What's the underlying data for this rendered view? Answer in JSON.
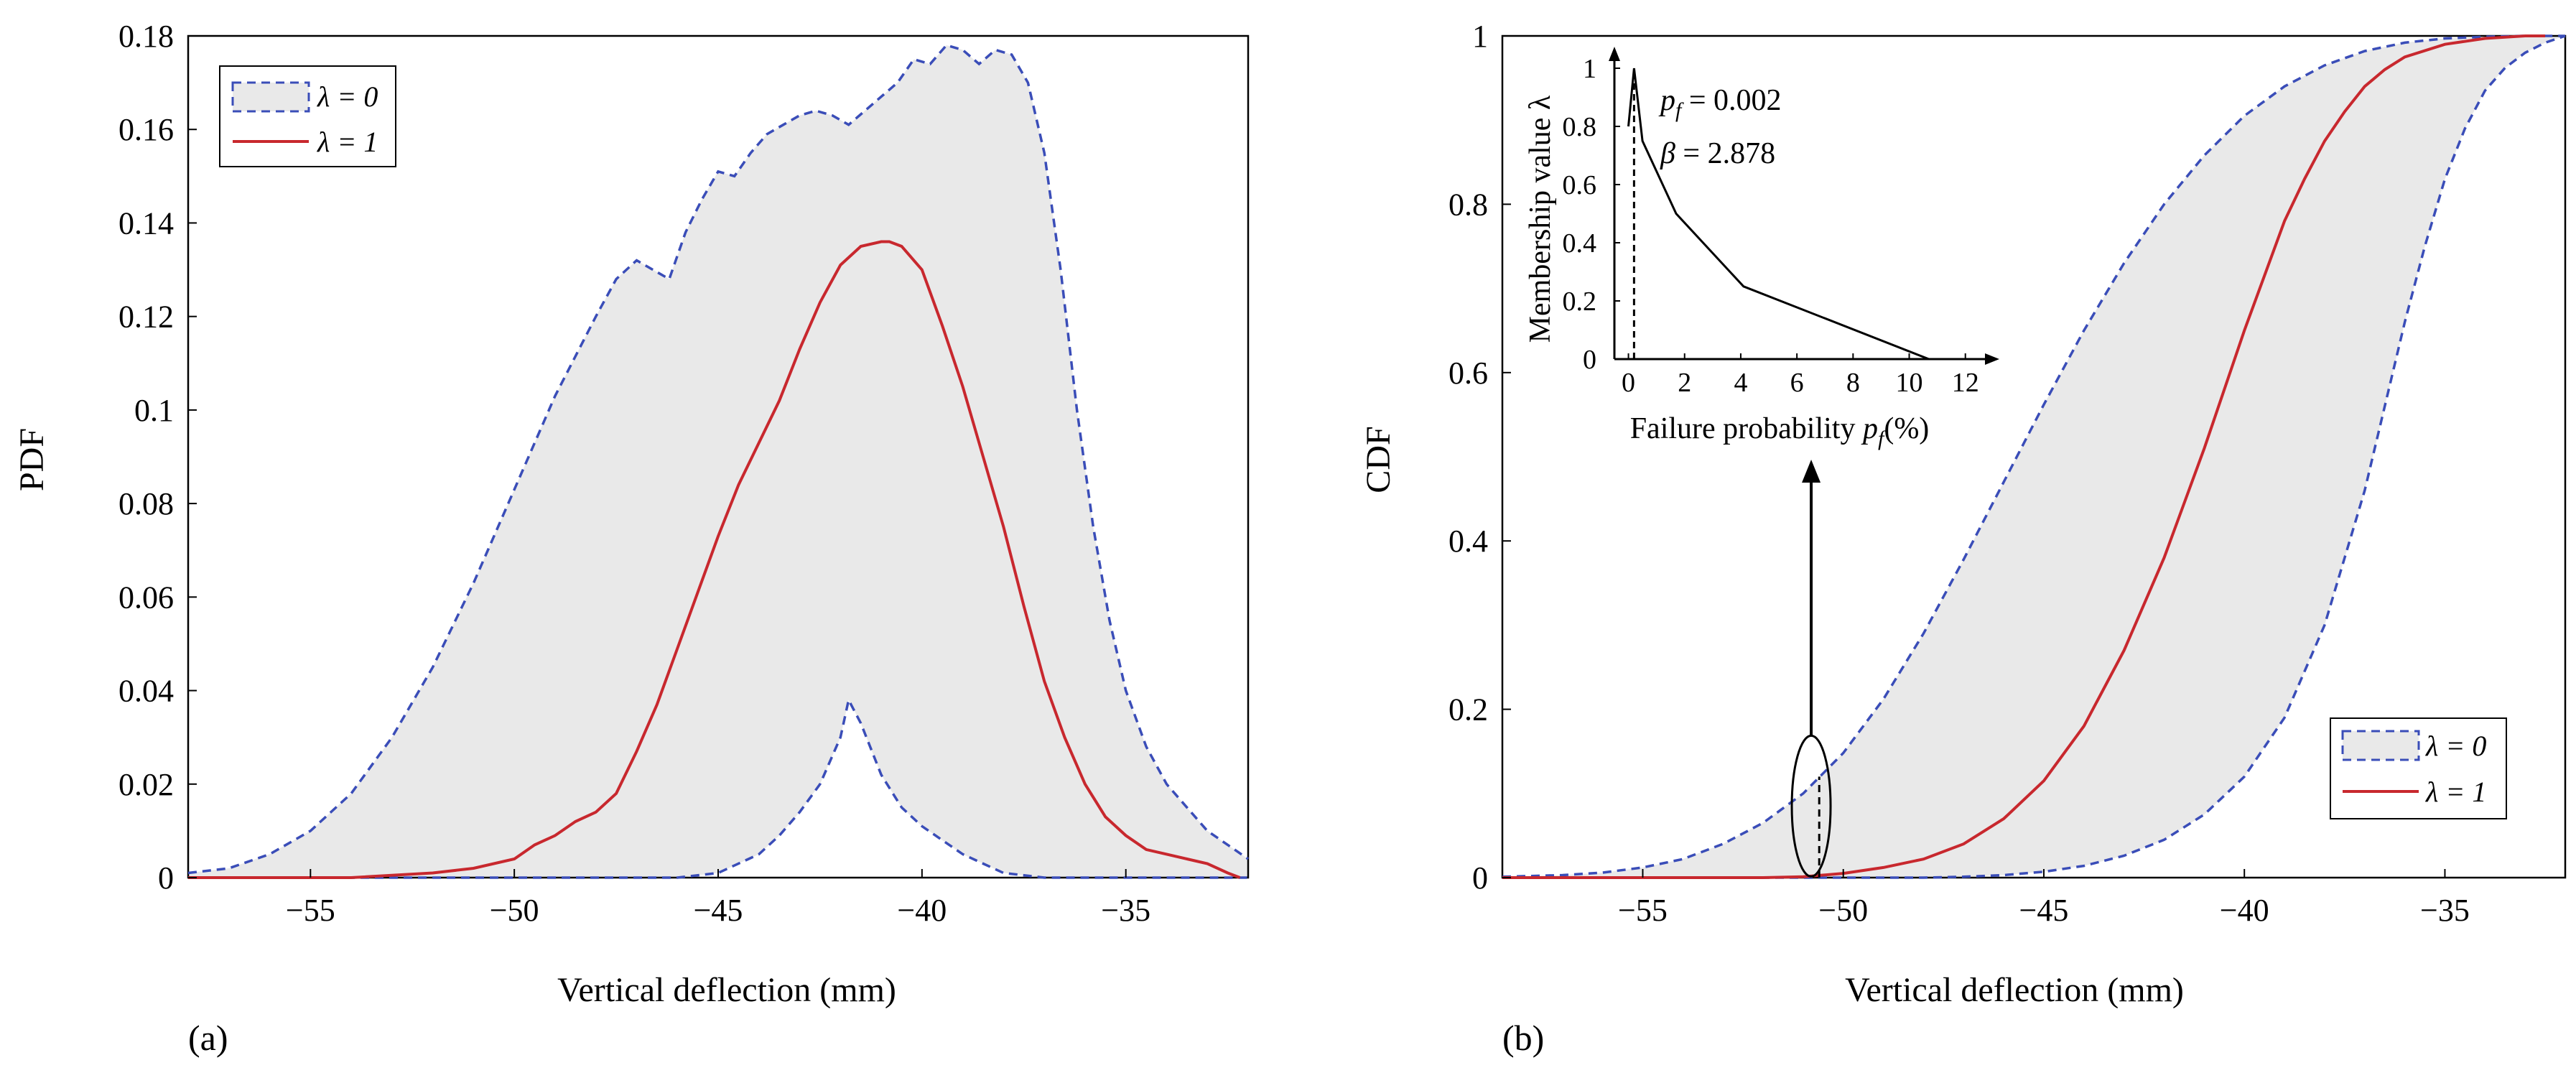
{
  "colors": {
    "lambda0_line": "#3a4db8",
    "lambda1_line": "#c8282e",
    "band_fill": "#e9e9e9",
    "axis": "#000000"
  },
  "chart_data": [
    {
      "type": "area",
      "panel_label": "(a)",
      "xlabel": "Vertical deflection (mm)",
      "ylabel": "PDF",
      "xlim": [
        -58,
        -32
      ],
      "ylim": [
        0,
        0.18
      ],
      "xticks": [
        -55,
        -50,
        -45,
        -40,
        -35
      ],
      "xtick_labels": [
        "−55",
        "−50",
        "−45",
        "−40",
        "−35"
      ],
      "yticks": [
        0,
        0.02,
        0.04,
        0.06,
        0.08,
        0.1,
        0.12,
        0.14,
        0.16,
        0.18
      ],
      "ytick_labels": [
        "0",
        "0.02",
        "0.04",
        "0.06",
        "0.08",
        "0.1",
        "0.12",
        "0.14",
        "0.16",
        "0.18"
      ],
      "legend": {
        "position": "top-left",
        "entries": [
          {
            "label": "λ = 0",
            "style": "dashed-band"
          },
          {
            "label": "λ = 1",
            "style": "solid"
          }
        ]
      },
      "series": [
        {
          "name": "λ = 0 upper",
          "style": "dashed",
          "x": [
            -58,
            -57,
            -56,
            -55,
            -54,
            -53,
            -52,
            -51,
            -50,
            -49,
            -48,
            -47.5,
            -47,
            -46.6,
            -46.2,
            -45.8,
            -45.4,
            -45,
            -44.6,
            -44.2,
            -43.8,
            -43.4,
            -43,
            -42.6,
            -42.2,
            -41.8,
            -41.4,
            -41,
            -40.6,
            -40.2,
            -39.8,
            -39.4,
            -39,
            -38.6,
            -38.2,
            -37.8,
            -37.4,
            -37,
            -36.6,
            -36.2,
            -35.8,
            -35.4,
            -35,
            -34.5,
            -34,
            -33.5,
            -33,
            -32.5,
            -32
          ],
          "y": [
            0.001,
            0.002,
            0.005,
            0.01,
            0.018,
            0.03,
            0.045,
            0.063,
            0.083,
            0.103,
            0.12,
            0.128,
            0.132,
            0.13,
            0.128,
            0.138,
            0.145,
            0.151,
            0.15,
            0.155,
            0.159,
            0.161,
            0.163,
            0.164,
            0.163,
            0.161,
            0.164,
            0.167,
            0.17,
            0.175,
            0.174,
            0.178,
            0.177,
            0.174,
            0.177,
            0.176,
            0.17,
            0.155,
            0.13,
            0.1,
            0.075,
            0.055,
            0.04,
            0.028,
            0.02,
            0.015,
            0.01,
            0.007,
            0.004
          ]
        },
        {
          "name": "λ = 0 lower",
          "style": "dashed",
          "x": [
            -58,
            -46,
            -45,
            -44,
            -43.5,
            -43,
            -42.5,
            -42,
            -41.8,
            -41.5,
            -41,
            -40.5,
            -40,
            -39.5,
            -39,
            -38.5,
            -38,
            -37.5,
            -37,
            -36,
            -32
          ],
          "y": [
            0,
            0,
            0.001,
            0.005,
            0.009,
            0.014,
            0.02,
            0.03,
            0.038,
            0.033,
            0.022,
            0.015,
            0.011,
            0.008,
            0.005,
            0.003,
            0.001,
            0.0005,
            0,
            0,
            0
          ]
        },
        {
          "name": "λ = 1",
          "style": "solid",
          "x": [
            -58,
            -54,
            -52,
            -51,
            -50,
            -49.5,
            -49,
            -48.5,
            -48,
            -47.5,
            -47,
            -46.5,
            -46,
            -45.5,
            -45,
            -44.5,
            -44,
            -43.5,
            -43,
            -42.5,
            -42,
            -41.5,
            -41,
            -40.8,
            -40.5,
            -40,
            -39.5,
            -39,
            -38.5,
            -38,
            -37.5,
            -37,
            -36.5,
            -36,
            -35.5,
            -35,
            -34.5,
            -34,
            -33.5,
            -33,
            -32.5,
            -32.2
          ],
          "y": [
            0,
            0,
            0.001,
            0.002,
            0.004,
            0.007,
            0.009,
            0.012,
            0.014,
            0.018,
            0.027,
            0.037,
            0.049,
            0.061,
            0.073,
            0.084,
            0.093,
            0.102,
            0.113,
            0.123,
            0.131,
            0.135,
            0.136,
            0.136,
            0.135,
            0.13,
            0.118,
            0.105,
            0.09,
            0.075,
            0.058,
            0.042,
            0.03,
            0.02,
            0.013,
            0.009,
            0.006,
            0.005,
            0.004,
            0.003,
            0.001,
            0
          ]
        }
      ]
    },
    {
      "type": "area",
      "panel_label": "(b)",
      "xlabel": "Vertical deflection (mm)",
      "ylabel": "CDF",
      "xlim": [
        -58.5,
        -32
      ],
      "ylim": [
        0,
        1
      ],
      "xticks": [
        -55,
        -50,
        -45,
        -40,
        -35
      ],
      "xtick_labels": [
        "−55",
        "−50",
        "−45",
        "−40",
        "−35"
      ],
      "yticks": [
        0,
        0.2,
        0.4,
        0.6,
        0.8,
        1
      ],
      "ytick_labels": [
        "0",
        "0.2",
        "0.4",
        "0.6",
        "0.8",
        "1"
      ],
      "legend": {
        "position": "bottom-right",
        "entries": [
          {
            "label": "λ = 0",
            "style": "dashed-band"
          },
          {
            "label": "λ = 1",
            "style": "solid"
          }
        ]
      },
      "annotation": {
        "type": "ellipse-with-arrow",
        "x": -50.8,
        "y_center": 0.085,
        "target": "inset",
        "dashed_line_x": -50.6,
        "dashed_line_ylim": [
          0,
          0.12
        ]
      },
      "series": [
        {
          "name": "λ = 0 left",
          "style": "dashed",
          "x": [
            -58.5,
            -57,
            -56,
            -55,
            -54,
            -53,
            -52,
            -51,
            -50,
            -49,
            -48,
            -47,
            -46,
            -45,
            -44,
            -43,
            -42,
            -41,
            -40,
            -39,
            -38,
            -37,
            -36,
            -35,
            -34,
            -33,
            -32
          ],
          "y": [
            0.001,
            0.003,
            0.006,
            0.012,
            0.022,
            0.04,
            0.065,
            0.1,
            0.148,
            0.212,
            0.29,
            0.378,
            0.47,
            0.562,
            0.65,
            0.73,
            0.8,
            0.858,
            0.905,
            0.94,
            0.965,
            0.982,
            0.992,
            0.997,
            0.999,
            1,
            1
          ]
        },
        {
          "name": "λ = 0 right",
          "style": "dashed",
          "x": [
            -58.5,
            -48,
            -47,
            -46,
            -45,
            -44,
            -43,
            -42,
            -41,
            -40,
            -39,
            -38,
            -37,
            -36.5,
            -36,
            -35.5,
            -35,
            -34.5,
            -34,
            -33.5,
            -33,
            -32.5,
            -32
          ],
          "y": [
            0,
            0,
            0.001,
            0.003,
            0.007,
            0.014,
            0.026,
            0.045,
            0.075,
            0.12,
            0.19,
            0.3,
            0.46,
            0.56,
            0.66,
            0.75,
            0.83,
            0.89,
            0.935,
            0.962,
            0.98,
            0.992,
            1
          ]
        },
        {
          "name": "λ = 1",
          "style": "solid",
          "x": [
            -58.5,
            -52,
            -51,
            -50,
            -49,
            -48,
            -47,
            -46,
            -45,
            -44,
            -43,
            -42,
            -41,
            -40,
            -39,
            -38.5,
            -38,
            -37.5,
            -37,
            -36.5,
            -36,
            -35,
            -34,
            -33,
            -32.5
          ],
          "y": [
            0,
            0,
            0.001,
            0.005,
            0.012,
            0.022,
            0.04,
            0.07,
            0.115,
            0.18,
            0.27,
            0.38,
            0.51,
            0.65,
            0.78,
            0.83,
            0.875,
            0.91,
            0.94,
            0.96,
            0.975,
            0.99,
            0.997,
            1,
            1
          ]
        }
      ],
      "inset": {
        "type": "line",
        "xlabel": "Failure probability",
        "xlabel_symbol": "p",
        "xlabel_subscript": "f",
        "xlabel_unit": "(%)",
        "ylabel": "Membership value λ",
        "xlim": [
          -0.5,
          12.8
        ],
        "ylim": [
          0,
          1
        ],
        "xticks": [
          0,
          2,
          4,
          6,
          8,
          10,
          12
        ],
        "xtick_labels": [
          "0",
          "2",
          "4",
          "6",
          "8",
          "10",
          "12"
        ],
        "yticks": [
          0,
          0.2,
          0.4,
          0.6,
          0.8,
          1
        ],
        "ytick_labels": [
          "0",
          "0.2",
          "0.4",
          "0.6",
          "0.8",
          "1"
        ],
        "annotations": [
          {
            "symbol": "p",
            "subscript": "f",
            "rest": " = 0.002"
          },
          {
            "symbol": "β",
            "subscript": "",
            "rest": " = 2.878"
          }
        ],
        "marker_line_x": 0.2,
        "series": [
          {
            "name": "membership",
            "x": [
              0,
              0.2,
              0.5,
              1.7,
              4.1,
              10.7
            ],
            "y": [
              0.8,
              1,
              0.75,
              0.5,
              0.25,
              0
            ]
          }
        ]
      }
    }
  ]
}
